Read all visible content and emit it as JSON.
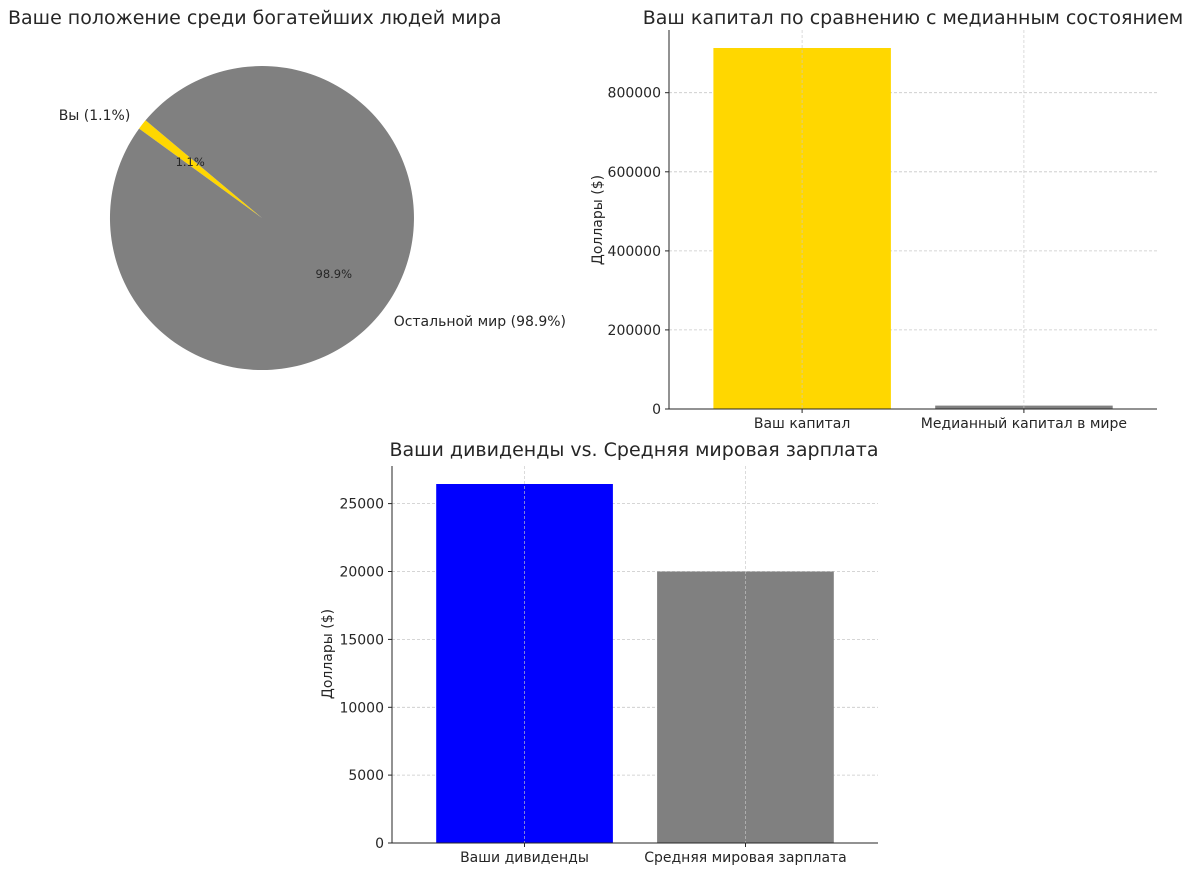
{
  "chart_data": [
    {
      "type": "pie",
      "title": "Ваше положение среди богатейших людей мира",
      "labels": [
        "Вы (1.1%)",
        "Остальной мир (98.9%)"
      ],
      "values": [
        1.1,
        98.9
      ],
      "pct_labels": [
        "1.1%",
        "98.9%"
      ],
      "colors": [
        "#FFD700",
        "#808080"
      ]
    },
    {
      "type": "bar",
      "title": "Ваш капитал по сравнению с медианным состоянием",
      "categories": [
        "Ваш капитал",
        "Медианный капитал в мире"
      ],
      "values": [
        913000,
        8700
      ],
      "colors": [
        "#FFD700",
        "#808080"
      ],
      "xlabel": "",
      "ylabel": "Доллары ($)",
      "ylim": [
        0,
        958650
      ],
      "yticks": [
        0,
        200000,
        400000,
        600000,
        800000
      ],
      "grid": true
    },
    {
      "type": "bar",
      "title": "Ваши дивиденды vs. Средняя мировая зарплата",
      "categories": [
        "Ваши дивиденды",
        "Средняя мировая зарплата"
      ],
      "values": [
        26450,
        20000
      ],
      "colors": [
        "#0000FF",
        "#808080"
      ],
      "xlabel": "",
      "ylabel": "Доллары ($)",
      "ylim": [
        0,
        27772.5
      ],
      "yticks": [
        0,
        5000,
        10000,
        15000,
        20000,
        25000
      ],
      "grid": true
    }
  ]
}
